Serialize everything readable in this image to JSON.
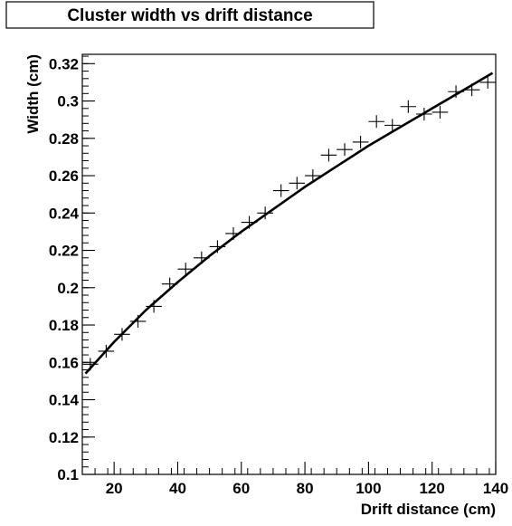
{
  "chart_data": {
    "type": "scatter",
    "title": "Cluster width vs drift distance",
    "xlabel": "Drift distance (cm)",
    "ylabel": "Width (cm)",
    "xlim": [
      10,
      140
    ],
    "ylim": [
      0.1,
      0.325
    ],
    "x_ticks": [
      20,
      40,
      60,
      80,
      100,
      120,
      140
    ],
    "x_tick_labels": [
      "20",
      "40",
      "60",
      "80",
      "100",
      "120",
      "140"
    ],
    "y_ticks": [
      0.1,
      0.12,
      0.14,
      0.16,
      0.18,
      0.2,
      0.22,
      0.24,
      0.26,
      0.28,
      0.3,
      0.32
    ],
    "y_tick_labels": [
      "0.1",
      "0.12",
      "0.14",
      "0.16",
      "0.18",
      "0.2",
      "0.22",
      "0.24",
      "0.26",
      "0.28",
      "0.3",
      "0.32"
    ],
    "grid": false,
    "series": [
      {
        "marker": "cross",
        "x": [
          12.5,
          17.5,
          22.5,
          27.5,
          32.5,
          37.5,
          42.5,
          47.5,
          52.5,
          57.5,
          62.5,
          67.5,
          72.5,
          77.5,
          82.5,
          87.5,
          92.5,
          97.5,
          102.5,
          107.5,
          112.5,
          117.5,
          122.5,
          127.5,
          132.5,
          137.5
        ],
        "y": [
          0.159,
          0.166,
          0.175,
          0.182,
          0.19,
          0.202,
          0.21,
          0.216,
          0.222,
          0.229,
          0.235,
          0.24,
          0.252,
          0.256,
          0.26,
          0.271,
          0.274,
          0.278,
          0.289,
          0.287,
          0.297,
          0.293,
          0.294,
          0.305,
          0.306,
          0.31
        ]
      },
      {
        "type": "line",
        "x": [
          11,
          20,
          30,
          40,
          50,
          60,
          70,
          80,
          90,
          100,
          110,
          120,
          130,
          139
        ],
        "y": [
          0.154,
          0.171,
          0.188,
          0.203,
          0.217,
          0.23,
          0.242,
          0.254,
          0.265,
          0.276,
          0.286,
          0.296,
          0.306,
          0.315
        ]
      }
    ]
  }
}
